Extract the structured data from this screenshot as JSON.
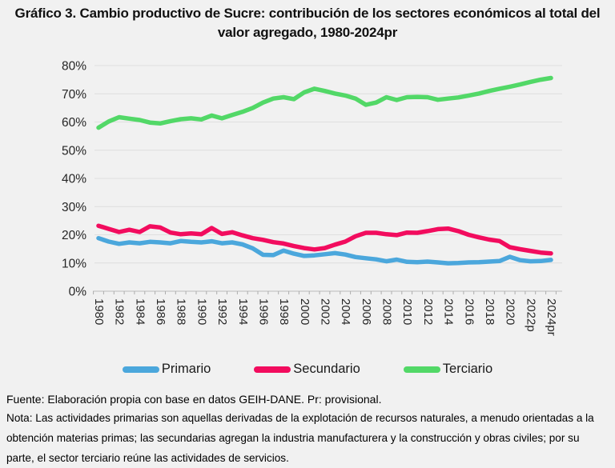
{
  "title": "Gráfico 3. Cambio productivo de Sucre: contribución de los sectores económicos al total del valor agregado, 1980-2024pr",
  "chart_data": {
    "type": "line",
    "title": "Gráfico 3. Cambio productivo de Sucre: contribución de los sectores económicos al total del valor agregado, 1980-2024pr",
    "xlabel": "",
    "ylabel": "",
    "ylim": [
      0,
      80
    ],
    "grid": true,
    "legend_position": "bottom",
    "grid_color": "#dedede",
    "axis_color": "#c6c6c6",
    "tick_color": "#adadad",
    "label_color": "#262626",
    "y_tick_labels": [
      "0%",
      "10%",
      "20%",
      "30%",
      "40%",
      "50%",
      "60%",
      "70%",
      "80%"
    ],
    "x_tick_labels": [
      "1980",
      "1982",
      "1984",
      "1986",
      "1988",
      "1990",
      "1992",
      "1994",
      "1996",
      "1998",
      "2000",
      "2002",
      "2004",
      "2006",
      "2008",
      "2010",
      "2012",
      "2014",
      "2016",
      "2018",
      "2020",
      "2022p",
      "2024pr"
    ],
    "years": [
      1980,
      1981,
      1982,
      1983,
      1984,
      1985,
      1986,
      1987,
      1988,
      1989,
      1990,
      1991,
      1992,
      1993,
      1994,
      1995,
      1996,
      1997,
      1998,
      1999,
      2000,
      2001,
      2002,
      2003,
      2004,
      2005,
      2006,
      2007,
      2008,
      2009,
      2010,
      2011,
      2012,
      2013,
      2014,
      2015,
      2016,
      2017,
      2018,
      2019,
      2020,
      2021,
      2022,
      2023,
      2024
    ],
    "series": [
      {
        "name": "Primario",
        "color": "#4ba7dc",
        "values": [
          18.8,
          17.6,
          16.8,
          17.3,
          17.0,
          17.5,
          17.3,
          17.0,
          17.8,
          17.5,
          17.3,
          17.7,
          17.0,
          17.3,
          16.6,
          15.2,
          12.9,
          12.8,
          14.4,
          13.3,
          12.5,
          12.7,
          13.1,
          13.5,
          13.0,
          12.1,
          11.7,
          11.3,
          10.6,
          11.2,
          10.4,
          10.3,
          10.5,
          10.2,
          9.9,
          10.0,
          10.2,
          10.3,
          10.5,
          10.7,
          12.2,
          11.0,
          10.6,
          10.7,
          11.1
        ]
      },
      {
        "name": "Secundario",
        "color": "#f20c5e",
        "values": [
          23.2,
          22.1,
          21.0,
          21.8,
          21.0,
          23.0,
          22.6,
          20.8,
          20.2,
          20.5,
          20.2,
          22.4,
          20.3,
          20.9,
          19.8,
          18.8,
          18.2,
          17.4,
          16.9,
          16.0,
          15.3,
          14.8,
          15.3,
          16.5,
          17.6,
          19.5,
          20.7,
          20.7,
          20.2,
          19.9,
          20.8,
          20.7,
          21.3,
          22.0,
          22.2,
          21.3,
          20.0,
          19.1,
          18.3,
          17.8,
          15.6,
          14.9,
          14.3,
          13.7,
          13.4
        ]
      },
      {
        "name": "Terciario",
        "color": "#52d867",
        "values": [
          58.0,
          60.2,
          61.7,
          61.2,
          60.7,
          59.8,
          59.5,
          60.3,
          61.0,
          61.3,
          60.9,
          62.3,
          61.3,
          62.5,
          63.6,
          65.0,
          66.9,
          68.3,
          68.8,
          68.1,
          70.5,
          71.8,
          71.0,
          70.1,
          69.4,
          68.3,
          66.1,
          66.9,
          68.8,
          67.8,
          68.8,
          68.9,
          68.8,
          67.9,
          68.3,
          68.7,
          69.4,
          70.1,
          71.0,
          71.8,
          72.5,
          73.3,
          74.2,
          75.0,
          75.6
        ]
      }
    ]
  },
  "footer": {
    "fuente": "Fuente: Elaboración propia con base en datos GEIH-DANE. Pr: provisional.",
    "nota": "Nota: Las actividades primarias son aquellas derivadas de la explotación de recursos naturales, a menudo orientadas a la obtención materias primas; las secundarias agregan la industria manufacturera y la construcción y obras civiles; por su parte, el sector terciario reúne las actividades de servicios."
  }
}
